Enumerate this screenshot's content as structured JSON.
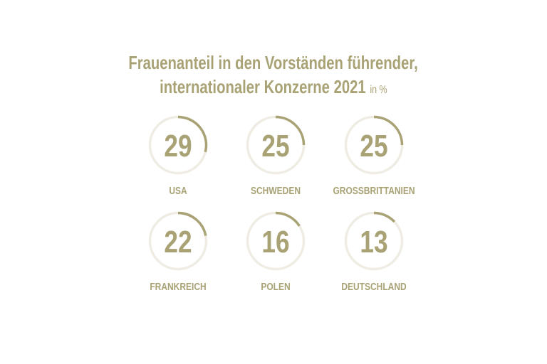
{
  "chart_data": {
    "type": "pie",
    "title_line1": "Frauenanteil in den Vorständen führender,",
    "title_line2": "internationaler Konzerne 2021",
    "unit": "in %",
    "categories": [
      "USA",
      "SCHWEDEN",
      "GROSSBRITTANIEN",
      "FRANKREICH",
      "POLEN",
      "DEUTSCHLAND"
    ],
    "values": [
      29,
      25,
      25,
      22,
      16,
      13
    ],
    "max": 100,
    "colors": {
      "accent": "#a8a275",
      "track": "#eeece3"
    }
  }
}
